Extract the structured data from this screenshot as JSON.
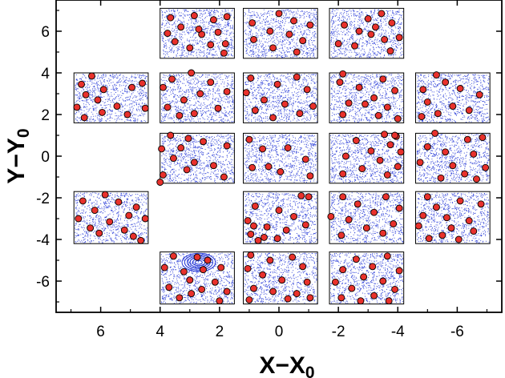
{
  "chart_data": {
    "type": "scatter",
    "title": "",
    "xlabel": "X−X",
    "xlabel_sub": "0",
    "ylabel": "Y−Y",
    "ylabel_sub": "0",
    "x_reversed": true,
    "xlim": [
      7.5,
      -7.5
    ],
    "ylim": [
      -7.5,
      7.5
    ],
    "xticks": [
      6,
      4,
      2,
      0,
      -2,
      -4,
      -6
    ],
    "xtick_labels": [
      "6",
      "4",
      "2",
      "0",
      "-2",
      "-4",
      "-6"
    ],
    "yticks": [
      -6,
      -4,
      -2,
      0,
      2,
      4,
      6
    ],
    "ytick_labels": [
      "-6",
      "-4",
      "-2",
      "0",
      "2",
      "4",
      "6"
    ],
    "grid": false,
    "colors": {
      "field_points": "#1f33d6",
      "sources_fill": "#e8312c",
      "sources_edge": "#000000",
      "frame": "#000000"
    },
    "fields": [
      {
        "x": [
          4.0,
          1.5
        ],
        "y": [
          4.7,
          7.1
        ]
      },
      {
        "x": [
          1.2,
          -1.3
        ],
        "y": [
          4.7,
          7.1
        ]
      },
      {
        "x": [
          -1.7,
          -4.2
        ],
        "y": [
          4.7,
          7.1
        ]
      },
      {
        "x": [
          6.9,
          4.4
        ],
        "y": [
          1.6,
          4.0
        ]
      },
      {
        "x": [
          4.0,
          1.5
        ],
        "y": [
          1.6,
          4.0
        ]
      },
      {
        "x": [
          1.2,
          -1.3
        ],
        "y": [
          1.6,
          4.0
        ]
      },
      {
        "x": [
          -1.7,
          -4.2
        ],
        "y": [
          1.6,
          4.0
        ]
      },
      {
        "x": [
          -4.6,
          -7.1
        ],
        "y": [
          1.6,
          4.0
        ]
      },
      {
        "x": [
          4.0,
          1.5
        ],
        "y": [
          -1.3,
          1.1
        ]
      },
      {
        "x": [
          1.2,
          -1.3
        ],
        "y": [
          -1.3,
          1.1
        ]
      },
      {
        "x": [
          -1.7,
          -4.2
        ],
        "y": [
          -1.3,
          1.1
        ]
      },
      {
        "x": [
          -4.6,
          -7.1
        ],
        "y": [
          -1.3,
          1.1
        ]
      },
      {
        "x": [
          6.9,
          4.4
        ],
        "y": [
          -4.2,
          -1.7
        ]
      },
      {
        "x": [
          1.2,
          -1.3
        ],
        "y": [
          -4.2,
          -1.7
        ]
      },
      {
        "x": [
          -1.7,
          -4.2
        ],
        "y": [
          -4.2,
          -1.7
        ]
      },
      {
        "x": [
          -4.6,
          -7.1
        ],
        "y": [
          -4.2,
          -1.7
        ]
      },
      {
        "x": [
          4.0,
          1.5
        ],
        "y": [
          -7.1,
          -4.6
        ]
      },
      {
        "x": [
          1.2,
          -1.3
        ],
        "y": [
          -7.1,
          -4.6
        ]
      },
      {
        "x": [
          -1.7,
          -4.2
        ],
        "y": [
          -7.1,
          -4.6
        ]
      }
    ],
    "field_points_per_field": 900,
    "cluster": {
      "x": 2.7,
      "y": -5.1
    },
    "sources": [
      {
        "x": 3.65,
        "y": 6.65
      },
      {
        "x": 3.3,
        "y": 6.2
      },
      {
        "x": 2.85,
        "y": 6.75
      },
      {
        "x": 2.2,
        "y": 6.55
      },
      {
        "x": 1.75,
        "y": 6.7
      },
      {
        "x": 3.75,
        "y": 5.9
      },
      {
        "x": 2.6,
        "y": 5.85
      },
      {
        "x": 2.05,
        "y": 5.95
      },
      {
        "x": 3.0,
        "y": 5.2
      },
      {
        "x": 2.3,
        "y": 5.35
      },
      {
        "x": 1.8,
        "y": 5.4
      },
      {
        "x": 3.5,
        "y": 5.5
      },
      {
        "x": 1.85,
        "y": 4.95
      },
      {
        "x": 2.7,
        "y": 6.1
      },
      {
        "x": 0.0,
        "y": 6.85
      },
      {
        "x": -0.5,
        "y": 6.5
      },
      {
        "x": 0.9,
        "y": 6.4
      },
      {
        "x": 0.3,
        "y": 6.0
      },
      {
        "x": -1.05,
        "y": 6.3
      },
      {
        "x": 0.85,
        "y": 5.6
      },
      {
        "x": -0.35,
        "y": 5.85
      },
      {
        "x": -0.8,
        "y": 5.55
      },
      {
        "x": 0.2,
        "y": 5.2
      },
      {
        "x": -0.6,
        "y": 5.0
      },
      {
        "x": -3.45,
        "y": 6.85
      },
      {
        "x": -3.0,
        "y": 6.6
      },
      {
        "x": -3.8,
        "y": 6.4
      },
      {
        "x": -2.2,
        "y": 6.3
      },
      {
        "x": -3.25,
        "y": 6.2
      },
      {
        "x": -2.7,
        "y": 6.0
      },
      {
        "x": -4.05,
        "y": 5.7
      },
      {
        "x": -3.55,
        "y": 5.6
      },
      {
        "x": -2.0,
        "y": 5.4
      },
      {
        "x": -2.55,
        "y": 5.3
      },
      {
        "x": -3.75,
        "y": 5.05
      },
      {
        "x": -3.1,
        "y": 5.85
      },
      {
        "x": 6.3,
        "y": 3.85
      },
      {
        "x": 6.65,
        "y": 3.45
      },
      {
        "x": 4.6,
        "y": 3.5
      },
      {
        "x": 5.9,
        "y": 3.2
      },
      {
        "x": 6.5,
        "y": 2.95
      },
      {
        "x": 4.95,
        "y": 3.3
      },
      {
        "x": 6.1,
        "y": 2.7
      },
      {
        "x": 5.45,
        "y": 2.4
      },
      {
        "x": 6.8,
        "y": 2.35
      },
      {
        "x": 4.5,
        "y": 2.3
      },
      {
        "x": 5.95,
        "y": 2.1
      },
      {
        "x": 5.1,
        "y": 2.0
      },
      {
        "x": 6.55,
        "y": 1.85
      },
      {
        "x": 2.95,
        "y": 4.0
      },
      {
        "x": 3.6,
        "y": 3.7
      },
      {
        "x": 2.3,
        "y": 3.55
      },
      {
        "x": 3.9,
        "y": 3.3
      },
      {
        "x": 2.65,
        "y": 3.0
      },
      {
        "x": 3.2,
        "y": 2.7
      },
      {
        "x": 1.75,
        "y": 3.1
      },
      {
        "x": 3.75,
        "y": 2.35
      },
      {
        "x": 2.05,
        "y": 2.3
      },
      {
        "x": 3.35,
        "y": 1.95
      },
      {
        "x": 2.85,
        "y": 2.05
      },
      {
        "x": 0.95,
        "y": 3.75
      },
      {
        "x": 0.05,
        "y": 3.45
      },
      {
        "x": -0.6,
        "y": 3.8
      },
      {
        "x": 1.1,
        "y": 3.05
      },
      {
        "x": -0.95,
        "y": 3.2
      },
      {
        "x": 0.5,
        "y": 2.7
      },
      {
        "x": -0.2,
        "y": 2.5
      },
      {
        "x": -1.15,
        "y": 2.4
      },
      {
        "x": 0.8,
        "y": 2.2
      },
      {
        "x": -0.7,
        "y": 2.05
      },
      {
        "x": 0.2,
        "y": 1.85
      },
      {
        "x": -2.15,
        "y": 3.95
      },
      {
        "x": -2.05,
        "y": 3.55
      },
      {
        "x": -3.5,
        "y": 3.7
      },
      {
        "x": -2.7,
        "y": 3.3
      },
      {
        "x": -3.9,
        "y": 3.15
      },
      {
        "x": -3.2,
        "y": 2.8
      },
      {
        "x": -2.35,
        "y": 2.55
      },
      {
        "x": -2.9,
        "y": 2.5
      },
      {
        "x": -3.65,
        "y": 2.35
      },
      {
        "x": -2.15,
        "y": 2.0
      },
      {
        "x": -3.35,
        "y": 1.95
      },
      {
        "x": -4.0,
        "y": 1.8
      },
      {
        "x": -5.3,
        "y": 3.9
      },
      {
        "x": -5.6,
        "y": 3.55
      },
      {
        "x": -4.85,
        "y": 3.2
      },
      {
        "x": -6.1,
        "y": 3.25
      },
      {
        "x": -6.75,
        "y": 2.95
      },
      {
        "x": -5.0,
        "y": 2.6
      },
      {
        "x": -5.85,
        "y": 2.4
      },
      {
        "x": -6.4,
        "y": 2.2
      },
      {
        "x": -4.8,
        "y": 1.9
      },
      {
        "x": -5.35,
        "y": 2.05
      },
      {
        "x": 3.65,
        "y": 1.0
      },
      {
        "x": 3.05,
        "y": 0.85
      },
      {
        "x": 2.55,
        "y": 0.7
      },
      {
        "x": 3.95,
        "y": 0.35
      },
      {
        "x": 3.3,
        "y": 0.4
      },
      {
        "x": 1.75,
        "y": 0.5
      },
      {
        "x": 3.55,
        "y": -0.1
      },
      {
        "x": 2.2,
        "y": -0.45
      },
      {
        "x": 3.1,
        "y": -0.65
      },
      {
        "x": 3.9,
        "y": -0.9
      },
      {
        "x": 1.85,
        "y": -1.0
      },
      {
        "x": 2.85,
        "y": -0.3
      },
      {
        "x": 4.0,
        "y": -1.25
      },
      {
        "x": 1.0,
        "y": 0.8
      },
      {
        "x": 0.55,
        "y": 0.35
      },
      {
        "x": -0.3,
        "y": 0.4
      },
      {
        "x": 0.9,
        "y": -0.55
      },
      {
        "x": -0.05,
        "y": -0.75
      },
      {
        "x": -0.9,
        "y": -0.15
      },
      {
        "x": 0.35,
        "y": -0.5
      },
      {
        "x": -1.05,
        "y": -0.95
      },
      {
        "x": -3.55,
        "y": 1.05
      },
      {
        "x": -3.95,
        "y": 0.95
      },
      {
        "x": -3.75,
        "y": 0.55
      },
      {
        "x": -2.6,
        "y": 0.75
      },
      {
        "x": -3.1,
        "y": 0.25
      },
      {
        "x": -4.1,
        "y": 0.2
      },
      {
        "x": -2.25,
        "y": 0.0
      },
      {
        "x": -3.4,
        "y": -0.2
      },
      {
        "x": -4.0,
        "y": -0.5
      },
      {
        "x": -2.8,
        "y": -0.6
      },
      {
        "x": -3.65,
        "y": -0.9
      },
      {
        "x": -2.15,
        "y": -0.85
      },
      {
        "x": -3.9,
        "y": 1.0
      },
      {
        "x": -5.25,
        "y": 1.1
      },
      {
        "x": -6.35,
        "y": 0.8
      },
      {
        "x": -6.85,
        "y": 0.9
      },
      {
        "x": -5.0,
        "y": 0.45
      },
      {
        "x": -5.6,
        "y": 0.2
      },
      {
        "x": -6.55,
        "y": 0.1
      },
      {
        "x": -4.75,
        "y": -0.3
      },
      {
        "x": -5.85,
        "y": -0.45
      },
      {
        "x": -6.25,
        "y": -0.85
      },
      {
        "x": -6.65,
        "y": -1.1
      },
      {
        "x": -5.45,
        "y": -1.05
      },
      {
        "x": -6.95,
        "y": -0.55
      },
      {
        "x": 5.85,
        "y": -1.85
      },
      {
        "x": 6.6,
        "y": -2.15
      },
      {
        "x": 5.4,
        "y": -2.2
      },
      {
        "x": 6.2,
        "y": -2.6
      },
      {
        "x": 4.8,
        "y": -2.45
      },
      {
        "x": 5.05,
        "y": -2.85
      },
      {
        "x": 6.75,
        "y": -3.0
      },
      {
        "x": 5.7,
        "y": -3.15
      },
      {
        "x": 4.5,
        "y": -3.0
      },
      {
        "x": 6.35,
        "y": -3.45
      },
      {
        "x": 5.2,
        "y": -3.55
      },
      {
        "x": 4.9,
        "y": -3.85
      },
      {
        "x": 6.05,
        "y": -3.7
      },
      {
        "x": 4.65,
        "y": -4.05
      },
      {
        "x": -0.75,
        "y": -1.9
      },
      {
        "x": -1.0,
        "y": -1.95
      },
      {
        "x": 0.8,
        "y": -2.4
      },
      {
        "x": 0.0,
        "y": -2.6
      },
      {
        "x": -0.5,
        "y": -2.9
      },
      {
        "x": 1.05,
        "y": -3.1
      },
      {
        "x": 0.4,
        "y": -3.4
      },
      {
        "x": -0.25,
        "y": -3.55
      },
      {
        "x": 0.95,
        "y": -3.75
      },
      {
        "x": 0.5,
        "y": -3.9
      },
      {
        "x": 0.05,
        "y": -3.95
      },
      {
        "x": 0.7,
        "y": -4.05
      },
      {
        "x": -0.9,
        "y": -3.3
      },
      {
        "x": 0.85,
        "y": -3.35
      },
      {
        "x": -2.15,
        "y": -1.95
      },
      {
        "x": -3.6,
        "y": -1.95
      },
      {
        "x": -2.65,
        "y": -2.3
      },
      {
        "x": -4.05,
        "y": -2.5
      },
      {
        "x": -3.2,
        "y": -2.7
      },
      {
        "x": -2.35,
        "y": -3.05
      },
      {
        "x": -1.75,
        "y": -2.9
      },
      {
        "x": -3.85,
        "y": -3.25
      },
      {
        "x": -2.95,
        "y": -3.45
      },
      {
        "x": -3.5,
        "y": -3.7
      },
      {
        "x": -2.1,
        "y": -3.8
      },
      {
        "x": -5.0,
        "y": -1.95
      },
      {
        "x": -6.1,
        "y": -2.15
      },
      {
        "x": -6.8,
        "y": -2.3
      },
      {
        "x": -5.3,
        "y": -2.45
      },
      {
        "x": -4.85,
        "y": -2.85
      },
      {
        "x": -5.65,
        "y": -2.95
      },
      {
        "x": -6.4,
        "y": -3.1
      },
      {
        "x": -4.7,
        "y": -3.35
      },
      {
        "x": -6.55,
        "y": -3.6
      },
      {
        "x": -5.05,
        "y": -3.95
      },
      {
        "x": -5.5,
        "y": -3.8
      },
      {
        "x": -6.05,
        "y": -4.0
      },
      {
        "x": -5.8,
        "y": -3.45
      },
      {
        "x": 3.55,
        "y": -4.8
      },
      {
        "x": 2.75,
        "y": -4.85
      },
      {
        "x": 2.4,
        "y": -5.0
      },
      {
        "x": 3.85,
        "y": -5.35
      },
      {
        "x": 3.2,
        "y": -5.55
      },
      {
        "x": 2.55,
        "y": -5.45
      },
      {
        "x": 1.95,
        "y": -5.35
      },
      {
        "x": 3.0,
        "y": -5.95
      },
      {
        "x": 2.15,
        "y": -6.05
      },
      {
        "x": 3.7,
        "y": -6.3
      },
      {
        "x": 2.6,
        "y": -6.4
      },
      {
        "x": 1.75,
        "y": -6.5
      },
      {
        "x": 3.35,
        "y": -6.8
      },
      {
        "x": 2.0,
        "y": -6.95
      },
      {
        "x": 2.95,
        "y": -6.6
      },
      {
        "x": 0.95,
        "y": -4.75
      },
      {
        "x": 0.3,
        "y": -5.0
      },
      {
        "x": -0.45,
        "y": -4.85
      },
      {
        "x": 1.05,
        "y": -5.4
      },
      {
        "x": -0.8,
        "y": -5.3
      },
      {
        "x": 0.55,
        "y": -5.7
      },
      {
        "x": -0.1,
        "y": -5.95
      },
      {
        "x": -0.95,
        "y": -6.05
      },
      {
        "x": 0.85,
        "y": -6.35
      },
      {
        "x": 0.2,
        "y": -6.5
      },
      {
        "x": -0.6,
        "y": -6.6
      },
      {
        "x": 1.0,
        "y": -6.9
      },
      {
        "x": -0.3,
        "y": -6.85
      },
      {
        "x": -1.05,
        "y": -6.8
      },
      {
        "x": -3.65,
        "y": -4.8
      },
      {
        "x": -2.6,
        "y": -4.95
      },
      {
        "x": -3.15,
        "y": -5.3
      },
      {
        "x": -4.05,
        "y": -5.5
      },
      {
        "x": -2.15,
        "y": -5.45
      },
      {
        "x": -2.85,
        "y": -5.8
      },
      {
        "x": -3.5,
        "y": -6.0
      },
      {
        "x": -1.9,
        "y": -6.05
      },
      {
        "x": -2.45,
        "y": -6.35
      },
      {
        "x": -3.9,
        "y": -6.4
      },
      {
        "x": -3.2,
        "y": -6.7
      },
      {
        "x": -2.1,
        "y": -6.8
      },
      {
        "x": -2.75,
        "y": -6.95
      },
      {
        "x": -3.7,
        "y": -6.95
      }
    ]
  }
}
